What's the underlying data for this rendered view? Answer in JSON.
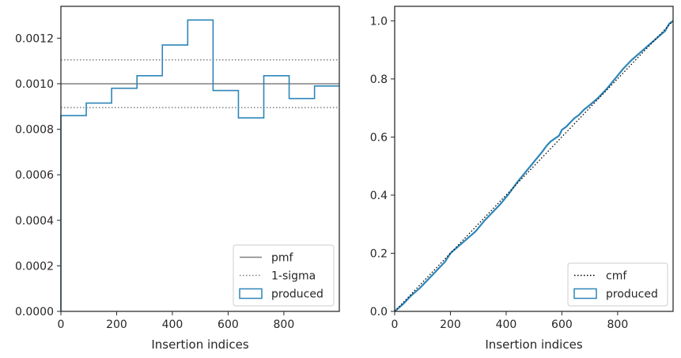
{
  "chart_data": [
    {
      "type": "histogram-step",
      "xlabel": "Insertion indices",
      "ylabel": "",
      "xlim": [
        0,
        999
      ],
      "ylim": [
        0,
        0.00134
      ],
      "xticks": [
        0,
        200,
        400,
        600,
        800
      ],
      "yticks": [
        0,
        0.0002,
        0.0004,
        0.0006,
        0.0008,
        0.001,
        0.0012
      ],
      "ytick_labels": [
        "0.0000",
        "0.0002",
        "0.0004",
        "0.0006",
        "0.0008",
        "0.0010",
        "0.0012"
      ],
      "bin_edges": [
        0,
        91,
        182,
        273,
        364,
        455,
        546,
        637,
        728,
        819,
        910,
        999
      ],
      "values": [
        0.00086,
        0.000915,
        0.00098,
        0.001035,
        0.00117,
        0.00128,
        0.00097,
        0.00085,
        0.001035,
        0.000935,
        0.00099
      ],
      "pmf": 0.001,
      "sigma_band": [
        0.000895,
        0.001105
      ],
      "legend": {
        "position": "lower right",
        "entries": [
          {
            "label": "pmf",
            "style": "solid",
            "color": "#808080"
          },
          {
            "label": "1-sigma",
            "style": "dotted",
            "color": "#808080"
          },
          {
            "label": "produced",
            "style": "patch",
            "color": "#1f77b4"
          }
        ]
      }
    },
    {
      "type": "line",
      "xlabel": "Insertion indices",
      "ylabel": "",
      "xlim": [
        0,
        999
      ],
      "ylim": [
        0,
        1.05
      ],
      "xticks": [
        0,
        200,
        400,
        600,
        800
      ],
      "yticks": [
        0,
        0.2,
        0.4,
        0.6,
        0.8,
        1.0
      ],
      "ytick_labels": [
        "0.0",
        "0.2",
        "0.4",
        "0.6",
        "0.8",
        "1.0"
      ],
      "cmf": {
        "x": [
          0,
          999
        ],
        "y": [
          0,
          1.0
        ]
      },
      "produced": {
        "x": [
          0,
          30,
          60,
          90,
          120,
          150,
          180,
          200,
          230,
          260,
          290,
          320,
          350,
          380,
          410,
          440,
          470,
          500,
          530,
          545,
          560,
          575,
          590,
          600,
          615,
          630,
          645,
          660,
          680,
          700,
          730,
          760,
          790,
          820,
          850,
          880,
          910,
          940,
          970,
          985,
          999
        ],
        "y": [
          0,
          0.025,
          0.055,
          0.08,
          0.11,
          0.14,
          0.17,
          0.2,
          0.225,
          0.25,
          0.275,
          0.31,
          0.34,
          0.37,
          0.405,
          0.445,
          0.48,
          0.515,
          0.55,
          0.57,
          0.585,
          0.595,
          0.605,
          0.625,
          0.635,
          0.65,
          0.665,
          0.675,
          0.695,
          0.71,
          0.735,
          0.765,
          0.8,
          0.835,
          0.865,
          0.89,
          0.915,
          0.94,
          0.965,
          0.99,
          1.0
        ]
      },
      "legend": {
        "position": "lower right",
        "entries": [
          {
            "label": "cmf",
            "style": "dotted",
            "color": "#000000"
          },
          {
            "label": "produced",
            "style": "patch",
            "color": "#1f77b4"
          }
        ]
      }
    }
  ]
}
